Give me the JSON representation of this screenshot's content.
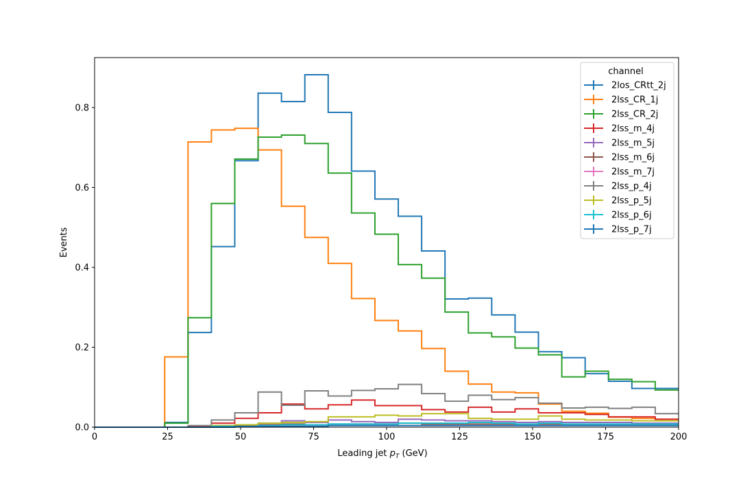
{
  "chart_data": {
    "type": "line",
    "xlabel": "Leading jet  p_T (GeV)",
    "ylabel": "Events",
    "xlim": [
      0,
      200
    ],
    "ylim": [
      0,
      0.925
    ],
    "x_ticks": [
      0,
      25,
      50,
      75,
      100,
      125,
      150,
      175,
      200
    ],
    "y_ticks": [
      0.0,
      0.2,
      0.4,
      0.6,
      0.8
    ],
    "grid": false,
    "legend": {
      "title": "channel",
      "position": "top-right"
    },
    "bin_edges": [
      0,
      8,
      16,
      24,
      32,
      40,
      48,
      56,
      64,
      72,
      80,
      88,
      96,
      104,
      112,
      120,
      128,
      136,
      144,
      152,
      160,
      168,
      176,
      184,
      192,
      200
    ],
    "series": [
      {
        "name": "2los_CRtt_2j",
        "color": "#1f77b4",
        "values": [
          0,
          0,
          0,
          0.012,
          0.237,
          0.452,
          0.667,
          0.836,
          0.815,
          0.882,
          0.788,
          0.641,
          0.571,
          0.528,
          0.441,
          0.321,
          0.323,
          0.281,
          0.238,
          0.189,
          0.174,
          0.134,
          0.115,
          0.097,
          0.097
        ]
      },
      {
        "name": "2lss_CR_1j",
        "color": "#ff7f0e",
        "values": [
          0,
          0,
          0,
          0.176,
          0.714,
          0.744,
          0.748,
          0.694,
          0.553,
          0.475,
          0.41,
          0.322,
          0.267,
          0.241,
          0.197,
          0.14,
          0.108,
          0.088,
          0.086,
          0.058,
          0.04,
          0.035,
          0.025,
          0.022,
          0.02
        ]
      },
      {
        "name": "2lss_CR_2j",
        "color": "#2ca02c",
        "values": [
          0,
          0,
          0,
          0.01,
          0.274,
          0.56,
          0.671,
          0.726,
          0.731,
          0.71,
          0.636,
          0.536,
          0.483,
          0.407,
          0.373,
          0.288,
          0.236,
          0.226,
          0.198,
          0.181,
          0.126,
          0.14,
          0.12,
          0.114,
          0.093
        ]
      },
      {
        "name": "2lss_m_4j",
        "color": "#d62728",
        "values": [
          0,
          0,
          0,
          0,
          0.002,
          0.01,
          0.022,
          0.036,
          0.058,
          0.046,
          0.056,
          0.068,
          0.054,
          0.054,
          0.044,
          0.038,
          0.05,
          0.038,
          0.046,
          0.036,
          0.036,
          0.032,
          0.026,
          0.026,
          0.02
        ]
      },
      {
        "name": "2lss_m_5j",
        "color": "#9467bd",
        "values": [
          0,
          0,
          0,
          0,
          0,
          0.004,
          0.006,
          0.01,
          0.016,
          0.012,
          0.018,
          0.014,
          0.012,
          0.02,
          0.018,
          0.016,
          0.016,
          0.014,
          0.012,
          0.014,
          0.012,
          0.012,
          0.012,
          0.01,
          0.01
        ]
      },
      {
        "name": "2lss_m_6j",
        "color": "#8c564b",
        "values": [
          0,
          0,
          0,
          0,
          0,
          0.002,
          0.004,
          0.006,
          0.008,
          0.006,
          0.008,
          0.008,
          0.008,
          0.01,
          0.008,
          0.008,
          0.008,
          0.008,
          0.006,
          0.008,
          0.006,
          0.006,
          0.006,
          0.006,
          0.006
        ]
      },
      {
        "name": "2lss_m_7j",
        "color": "#e377c2",
        "values": [
          0,
          0,
          0,
          0,
          0,
          0,
          0.002,
          0.002,
          0.004,
          0.004,
          0.004,
          0.004,
          0.004,
          0.004,
          0.004,
          0.004,
          0.004,
          0.004,
          0.004,
          0.004,
          0.004,
          0.004,
          0.004,
          0.004,
          0.004
        ]
      },
      {
        "name": "2lss_p_4j",
        "color": "#7f7f7f",
        "values": [
          0,
          0,
          0,
          0,
          0.004,
          0.018,
          0.036,
          0.088,
          0.055,
          0.091,
          0.078,
          0.092,
          0.096,
          0.107,
          0.084,
          0.065,
          0.08,
          0.069,
          0.074,
          0.06,
          0.048,
          0.05,
          0.047,
          0.05,
          0.034
        ]
      },
      {
        "name": "2lss_p_5j",
        "color": "#bcbd22",
        "values": [
          0,
          0,
          0,
          0,
          0,
          0.004,
          0.006,
          0.01,
          0.012,
          0.014,
          0.026,
          0.026,
          0.03,
          0.028,
          0.034,
          0.034,
          0.022,
          0.02,
          0.02,
          0.028,
          0.02,
          0.018,
          0.018,
          0.016,
          0.016
        ]
      },
      {
        "name": "2lss_p_6j",
        "color": "#17becf",
        "values": [
          0,
          0,
          0,
          0,
          0,
          0.002,
          0.002,
          0.004,
          0.006,
          0.006,
          0.008,
          0.008,
          0.008,
          0.01,
          0.01,
          0.01,
          0.012,
          0.01,
          0.008,
          0.01,
          0.008,
          0.008,
          0.008,
          0.008,
          0.008
        ]
      },
      {
        "name": "2lss_p_7j",
        "color": "#1f77b4",
        "values": [
          0,
          0,
          0,
          0,
          0,
          0,
          0.002,
          0.002,
          0.002,
          0.002,
          0.004,
          0.004,
          0.004,
          0.004,
          0.004,
          0.004,
          0.004,
          0.004,
          0.004,
          0.004,
          0.004,
          0.004,
          0.004,
          0.004,
          0.004
        ]
      }
    ]
  }
}
